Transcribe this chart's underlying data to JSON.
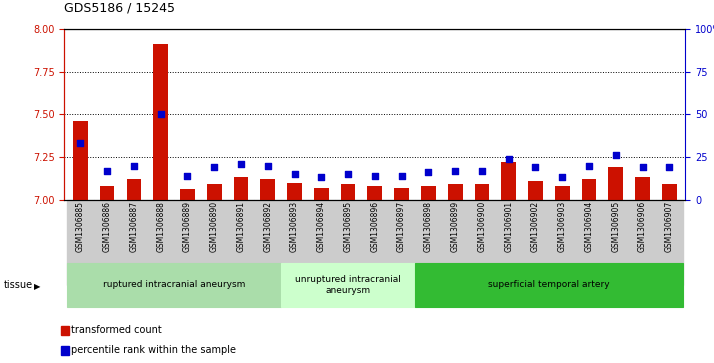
{
  "title": "GDS5186 / 15245",
  "samples": [
    "GSM1306885",
    "GSM1306886",
    "GSM1306887",
    "GSM1306888",
    "GSM1306889",
    "GSM1306890",
    "GSM1306891",
    "GSM1306892",
    "GSM1306893",
    "GSM1306894",
    "GSM1306895",
    "GSM1306896",
    "GSM1306897",
    "GSM1306898",
    "GSM1306899",
    "GSM1306900",
    "GSM1306901",
    "GSM1306902",
    "GSM1306903",
    "GSM1306904",
    "GSM1306905",
    "GSM1306906",
    "GSM1306907"
  ],
  "bar_values": [
    7.46,
    7.08,
    7.12,
    7.91,
    7.06,
    7.09,
    7.13,
    7.12,
    7.1,
    7.07,
    7.09,
    7.08,
    7.07,
    7.08,
    7.09,
    7.09,
    7.22,
    7.11,
    7.08,
    7.12,
    7.19,
    7.13,
    7.09
  ],
  "percentile_values": [
    33,
    17,
    20,
    50,
    14,
    19,
    21,
    20,
    15,
    13,
    15,
    14,
    14,
    16,
    17,
    17,
    24,
    19,
    13,
    20,
    26,
    19,
    19
  ],
  "ylim_left": [
    7.0,
    8.0
  ],
  "ylim_right": [
    0,
    100
  ],
  "yticks_left": [
    7.0,
    7.25,
    7.5,
    7.75,
    8.0
  ],
  "yticks_right": [
    0,
    25,
    50,
    75,
    100
  ],
  "bar_color": "#CC1100",
  "dot_color": "#0000CC",
  "plot_bg": "#FFFFFF",
  "tick_bg": "#CCCCCC",
  "groups": [
    {
      "label": "ruptured intracranial aneurysm",
      "start": 0,
      "end": 8,
      "color": "#AADDAA"
    },
    {
      "label": "unruptured intracranial\naneurysm",
      "start": 8,
      "end": 13,
      "color": "#CCFFCC"
    },
    {
      "label": "superficial temporal artery",
      "start": 13,
      "end": 23,
      "color": "#33BB33"
    }
  ],
  "tissue_label": "tissue",
  "legend_bar_label": "transformed count",
  "legend_dot_label": "percentile rank within the sample",
  "gridline_color": "#000000"
}
